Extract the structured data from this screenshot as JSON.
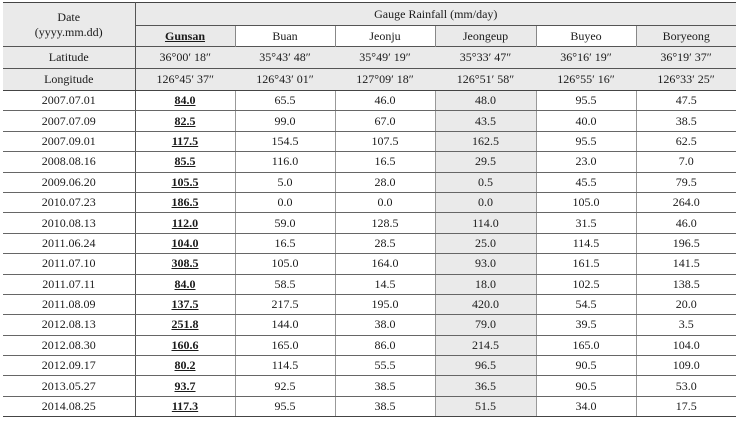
{
  "header": {
    "date_label": "Date",
    "date_format": "(yyyy.mm.dd)",
    "gauge_title": "Gauge Rainfall (mm/day)",
    "latitude_label": "Latitude",
    "longitude_label": "Longitude"
  },
  "stations": [
    {
      "name": "Gunsan",
      "latitude": "36°00′ 18″",
      "longitude": "126°45′ 37″"
    },
    {
      "name": "Buan",
      "latitude": "35°43′ 48″",
      "longitude": "126°43′ 01″"
    },
    {
      "name": "Jeonju",
      "latitude": "35°49′ 19″",
      "longitude": "127°09′ 18″"
    },
    {
      "name": "Jeongeup",
      "latitude": "35°33′ 47″",
      "longitude": "126°51′ 58″"
    },
    {
      "name": "Buyeo",
      "latitude": "36°16′ 19″",
      "longitude": "126°55′ 16″"
    },
    {
      "name": "Boryeong",
      "latitude": "36°19′ 37″",
      "longitude": "126°33′ 25″"
    }
  ],
  "rows": [
    {
      "date": "2007.07.01",
      "values": [
        "84.0",
        "65.5",
        "46.0",
        "48.0",
        "95.5",
        "47.5"
      ]
    },
    {
      "date": "2007.07.09",
      "values": [
        "82.5",
        "99.0",
        "67.0",
        "43.5",
        "40.0",
        "38.5"
      ]
    },
    {
      "date": "2007.09.01",
      "values": [
        "117.5",
        "154.5",
        "107.5",
        "162.5",
        "95.5",
        "62.5"
      ]
    },
    {
      "date": "2008.08.16",
      "values": [
        "85.5",
        "116.0",
        "16.5",
        "29.5",
        "23.0",
        "7.0"
      ]
    },
    {
      "date": "2009.06.20",
      "values": [
        "105.5",
        "5.0",
        "28.0",
        "0.5",
        "45.5",
        "79.5"
      ]
    },
    {
      "date": "2010.07.23",
      "values": [
        "186.5",
        "0.0",
        "0.0",
        "0.0",
        "105.0",
        "264.0"
      ]
    },
    {
      "date": "2010.08.13",
      "values": [
        "112.0",
        "59.0",
        "128.5",
        "114.0",
        "31.5",
        "46.0"
      ]
    },
    {
      "date": "2011.06.24",
      "values": [
        "104.0",
        "16.5",
        "28.5",
        "25.0",
        "114.5",
        "196.5"
      ]
    },
    {
      "date": "2011.07.10",
      "values": [
        "308.5",
        "105.0",
        "164.0",
        "93.0",
        "161.5",
        "141.5"
      ]
    },
    {
      "date": "2011.07.11",
      "values": [
        "84.0",
        "58.5",
        "14.5",
        "18.0",
        "102.5",
        "138.5"
      ]
    },
    {
      "date": "2011.08.09",
      "values": [
        "137.5",
        "217.5",
        "195.0",
        "420.0",
        "54.5",
        "20.0"
      ]
    },
    {
      "date": "2012.08.13",
      "values": [
        "251.8",
        "144.0",
        "38.0",
        "79.0",
        "39.5",
        "3.5"
      ]
    },
    {
      "date": "2012.08.30",
      "values": [
        "160.6",
        "165.0",
        "86.0",
        "214.5",
        "165.0",
        "104.0"
      ]
    },
    {
      "date": "2012.09.17",
      "values": [
        "80.2",
        "114.5",
        "55.5",
        "96.5",
        "90.5",
        "109.0"
      ]
    },
    {
      "date": "2013.05.27",
      "values": [
        "93.7",
        "92.5",
        "38.5",
        "36.5",
        "90.5",
        "53.0"
      ]
    },
    {
      "date": "2014.08.25",
      "values": [
        "117.3",
        "95.5",
        "38.5",
        "51.5",
        "34.0",
        "17.5"
      ]
    }
  ]
}
